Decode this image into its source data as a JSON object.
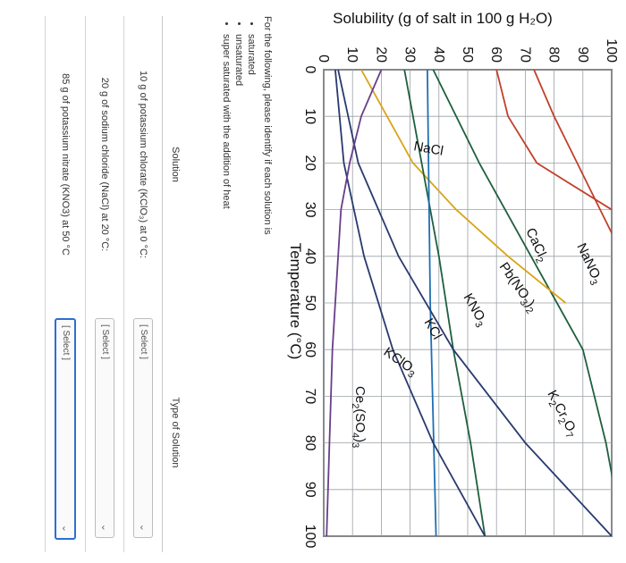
{
  "chart_data": {
    "type": "line",
    "title": "",
    "ylabel": "Solubility (g of salt in 100 g H₂O)",
    "xlabel": "Temperature (°C)",
    "x_ticks": [
      "0",
      "10",
      "20",
      "30",
      "40",
      "50",
      "60",
      "70",
      "80",
      "90",
      "100"
    ],
    "y_ticks": [
      "0",
      "10",
      "20",
      "30",
      "40",
      "50",
      "60",
      "70",
      "80",
      "90",
      "100"
    ],
    "xlim": [
      0,
      100
    ],
    "ylim": [
      0,
      100
    ],
    "grid": true,
    "series": [
      {
        "name": "NaNO₃",
        "color": "#c0402a",
        "x": [
          0,
          10,
          20,
          30,
          40
        ],
        "y": [
          73,
          80,
          88,
          96,
          104
        ]
      },
      {
        "name": "CaCl₂",
        "color": "#c0402a",
        "x": [
          0,
          10,
          20,
          30
        ],
        "y": [
          60,
          64,
          74,
          100
        ]
      },
      {
        "name": "Pb(NO₃)₂",
        "color": "#1f5f3e",
        "x": [
          0,
          20,
          40,
          60,
          80,
          100
        ],
        "y": [
          38,
          54,
          72,
          90,
          98,
          104
        ]
      },
      {
        "name": "KNO₃",
        "color": "#d9a418",
        "x": [
          0,
          20,
          30,
          40,
          50
        ],
        "y": [
          13,
          31,
          46,
          64,
          84
        ]
      },
      {
        "name": "KCl",
        "color": "#1f5f3e",
        "x": [
          0,
          20,
          40,
          60,
          80,
          100
        ],
        "y": [
          28,
          34,
          40,
          45,
          51,
          56
        ]
      },
      {
        "name": "NaCl",
        "color": "#1f6fb3",
        "x": [
          0,
          50,
          100
        ],
        "y": [
          36,
          37,
          39
        ]
      },
      {
        "name": "KClO₃",
        "color": "#283a6e",
        "x": [
          0,
          20,
          40,
          60,
          80,
          100
        ],
        "y": [
          4,
          7,
          14,
          24,
          38,
          56
        ]
      },
      {
        "name": "K₂Cr₂O₇",
        "color": "#283a6e",
        "x": [
          0,
          20,
          40,
          60,
          80,
          100
        ],
        "y": [
          5,
          12,
          26,
          45,
          70,
          100
        ]
      },
      {
        "name": "Ce₂(SO₄)₃",
        "color": "#6a3d8a",
        "x": [
          0,
          10,
          20,
          30,
          40,
          60,
          80,
          100
        ],
        "y": [
          20,
          13,
          9,
          6,
          5,
          3,
          2,
          1
        ]
      }
    ]
  },
  "question": {
    "intro": "For the following, please identify if each solution is",
    "options": [
      "saturated",
      "unsaturated",
      "super saturated with the addition of heat"
    ]
  },
  "table": {
    "headers": [
      "Solution",
      "Type of Solution"
    ],
    "rows": [
      {
        "solution": "10 g of potassium chlorate (KClO₃) at 0 °C:",
        "select": "[ Select ]"
      },
      {
        "solution": "20 g of sodium chloride (NaCl) at 20 °C:",
        "select": "[ Select ]"
      },
      {
        "solution": "85 g of potassium nitrate (KNO3) at 50 °C",
        "select": "[ Select ]"
      }
    ]
  }
}
